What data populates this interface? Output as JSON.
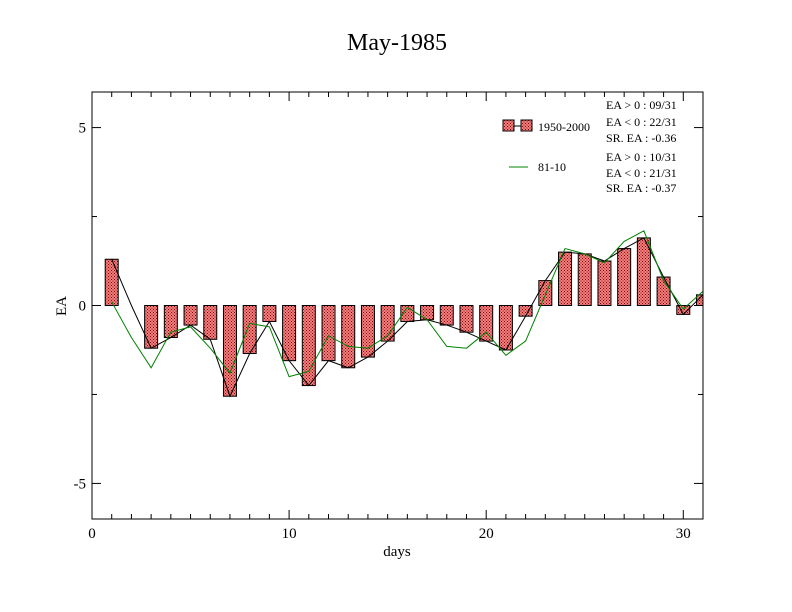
{
  "chart_data": {
    "type": "bar",
    "title": "May-1985",
    "xlabel": "days",
    "ylabel": "EA",
    "xlim": [
      0,
      31
    ],
    "ylim": [
      -6,
      6
    ],
    "x_ticks": [
      0,
      10,
      20,
      30
    ],
    "y_ticks": [
      -5,
      0,
      5
    ],
    "days": [
      1,
      2,
      3,
      4,
      5,
      6,
      7,
      8,
      9,
      10,
      11,
      12,
      13,
      14,
      15,
      16,
      17,
      18,
      19,
      20,
      21,
      22,
      23,
      24,
      25,
      26,
      27,
      28,
      29,
      30,
      31
    ],
    "series": [
      {
        "name": "1950-2000",
        "kind": "bar",
        "values": [
          1.3,
          0.0,
          -1.2,
          -0.9,
          -0.55,
          -0.95,
          -2.55,
          -1.35,
          -0.45,
          -1.55,
          -2.25,
          -1.55,
          -1.75,
          -1.45,
          -1.0,
          -0.45,
          -0.4,
          -0.55,
          -0.75,
          -1.0,
          -1.25,
          -0.3,
          0.7,
          1.5,
          1.45,
          1.25,
          1.6,
          1.9,
          0.8,
          -0.25,
          0.3
        ]
      },
      {
        "name": "81-10",
        "kind": "line",
        "values": [
          0.1,
          -0.9,
          -1.75,
          -0.75,
          -0.6,
          -1.2,
          -1.9,
          -0.5,
          -0.6,
          -2.0,
          -1.85,
          -0.85,
          -1.15,
          -1.2,
          -0.85,
          -0.05,
          -0.4,
          -1.15,
          -1.2,
          -0.75,
          -1.4,
          -1.0,
          0.3,
          1.6,
          1.45,
          1.2,
          1.8,
          2.1,
          0.7,
          -0.1,
          0.4
        ]
      }
    ],
    "legend": {
      "placement": "top-right",
      "stats": [
        [
          "EA > 0 : 09/31",
          "EA < 0 : 22/31",
          "SR. EA : -0.36"
        ],
        [
          "EA > 0 : 10/31",
          "EA < 0 : 21/31",
          "SR. EA : -0.37"
        ]
      ]
    },
    "colors": {
      "bar_fill": "#f08080",
      "bar_hatch": "#8b0000",
      "bar_outline": "#000000",
      "line_series": "#008000",
      "connector": "#000000"
    },
    "grid": false
  }
}
